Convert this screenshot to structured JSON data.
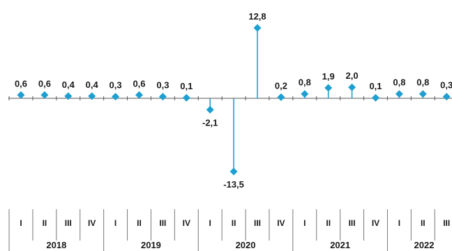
{
  "chart_data": {
    "type": "lollipop",
    "title": "",
    "xlabel": "",
    "ylabel": "",
    "ylim": [
      -13.5,
      12.8
    ],
    "grid": false,
    "legend": "none",
    "color": "#1f9fd0",
    "categories": [
      {
        "year": "2018",
        "quarter": "I",
        "value": 0.6,
        "label": "0,6"
      },
      {
        "year": "2018",
        "quarter": "II",
        "value": 0.6,
        "label": "0,6"
      },
      {
        "year": "2018",
        "quarter": "III",
        "value": 0.4,
        "label": "0,4"
      },
      {
        "year": "2018",
        "quarter": "IV",
        "value": 0.4,
        "label": "0,4"
      },
      {
        "year": "2019",
        "quarter": "I",
        "value": 0.3,
        "label": "0,3"
      },
      {
        "year": "2019",
        "quarter": "II",
        "value": 0.6,
        "label": "0,6"
      },
      {
        "year": "2019",
        "quarter": "III",
        "value": 0.3,
        "label": "0,3"
      },
      {
        "year": "2019",
        "quarter": "IV",
        "value": 0.1,
        "label": "0,1"
      },
      {
        "year": "2020",
        "quarter": "I",
        "value": -2.1,
        "label": "-2,1"
      },
      {
        "year": "2020",
        "quarter": "II",
        "value": -13.5,
        "label": "-13,5"
      },
      {
        "year": "2020",
        "quarter": "III",
        "value": 12.8,
        "label": "12,8"
      },
      {
        "year": "2020",
        "quarter": "IV",
        "value": 0.2,
        "label": "0,2"
      },
      {
        "year": "2021",
        "quarter": "I",
        "value": 0.8,
        "label": "0,8"
      },
      {
        "year": "2021",
        "quarter": "II",
        "value": 1.9,
        "label": "1,9"
      },
      {
        "year": "2021",
        "quarter": "III",
        "value": 2.0,
        "label": "2,0"
      },
      {
        "year": "2021",
        "quarter": "IV",
        "value": 0.1,
        "label": "0,1"
      },
      {
        "year": "2022",
        "quarter": "I",
        "value": 0.8,
        "label": "0,8"
      },
      {
        "year": "2022",
        "quarter": "II",
        "value": 0.8,
        "label": "0,8"
      },
      {
        "year": "2022",
        "quarter": "III",
        "value": 0.3,
        "label": "0,3"
      }
    ],
    "years": [
      "2018",
      "2019",
      "2020",
      "2021",
      "2022"
    ]
  }
}
